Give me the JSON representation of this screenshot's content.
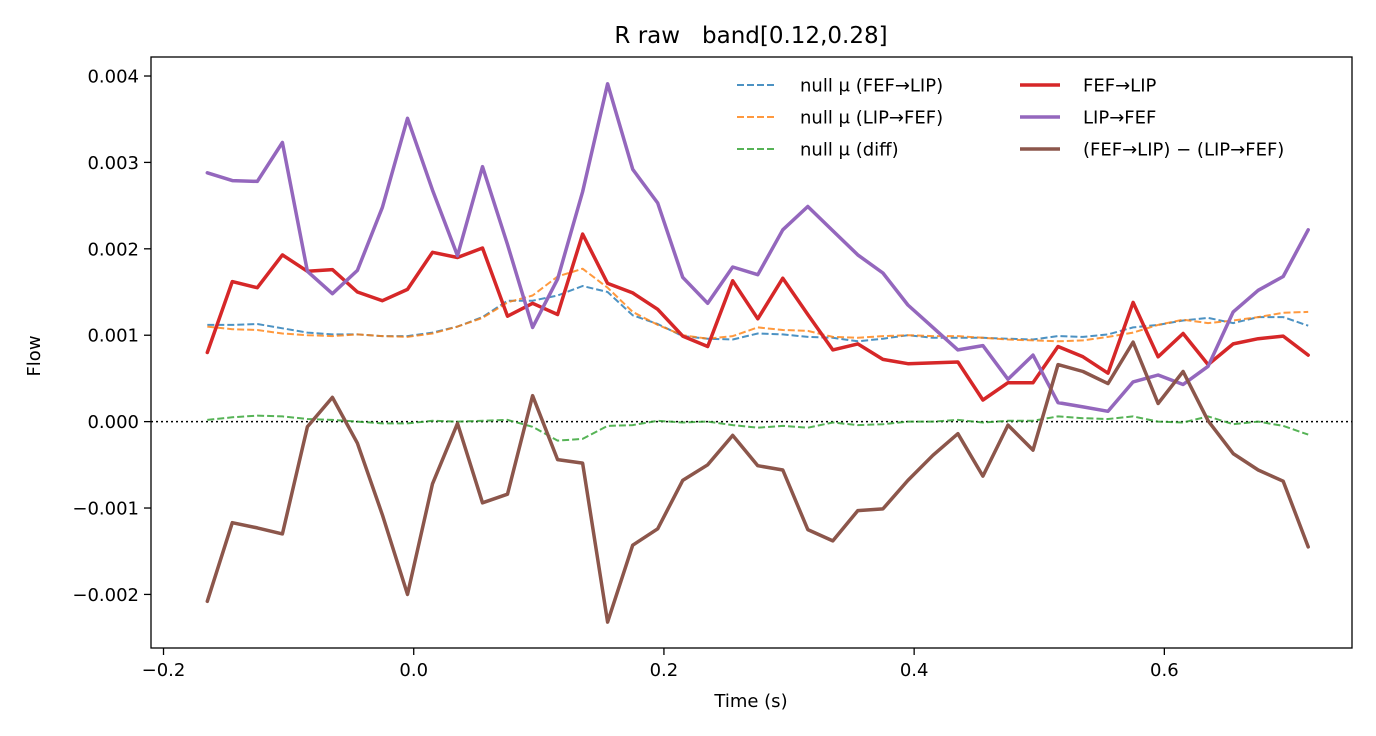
{
  "chart_data": {
    "type": "line",
    "title": "R raw   band[0.12,0.28]",
    "xlabel": "Time (s)",
    "ylabel": "Flow",
    "xlim": [
      -0.21,
      0.75
    ],
    "ylim": [
      -0.00262,
      0.00422
    ],
    "xticks": [
      -0.2,
      0.0,
      0.2,
      0.4,
      0.6
    ],
    "xtick_labels": [
      "−0.2",
      "0.0",
      "0.2",
      "0.4",
      "0.6"
    ],
    "yticks": [
      -0.002,
      -0.001,
      0.0,
      0.001,
      0.002,
      0.003,
      0.004
    ],
    "ytick_labels": [
      "−0.002",
      "−0.001",
      "0.000",
      "0.001",
      "0.002",
      "0.003",
      "0.004"
    ],
    "zero_line": true,
    "grid": false,
    "legend_position": "upper right",
    "x": [
      -0.165,
      -0.145,
      -0.125,
      -0.105,
      -0.085,
      -0.065,
      -0.045,
      -0.025,
      -0.005,
      0.015,
      0.035,
      0.055,
      0.075,
      0.095,
      0.115,
      0.135,
      0.155,
      0.175,
      0.195,
      0.215,
      0.235,
      0.255,
      0.275,
      0.295,
      0.315,
      0.335,
      0.355,
      0.375,
      0.395,
      0.415,
      0.435,
      0.455,
      0.475,
      0.495,
      0.515,
      0.535,
      0.555,
      0.575,
      0.595,
      0.615,
      0.635,
      0.655,
      0.675,
      0.695,
      0.715
    ],
    "series": [
      {
        "name": "null μ (FEF→LIP)",
        "color": "#1f77b4",
        "style": "dashed",
        "values": [
          0.00112,
          0.00112,
          0.00113,
          0.00108,
          0.00103,
          0.00101,
          0.00101,
          0.00099,
          0.00099,
          0.00103,
          0.0011,
          0.00121,
          0.0014,
          0.0014,
          0.00146,
          0.00157,
          0.0015,
          0.00123,
          0.00113,
          0.00099,
          0.00096,
          0.00095,
          0.00102,
          0.00101,
          0.00098,
          0.00097,
          0.00093,
          0.00096,
          0.001,
          0.00097,
          0.00097,
          0.00097,
          0.00096,
          0.00095,
          0.00099,
          0.00098,
          0.00101,
          0.00109,
          0.00112,
          0.00117,
          0.0012,
          0.00114,
          0.00121,
          0.00121,
          0.00111
        ]
      },
      {
        "name": "null μ (LIP→FEF)",
        "color": "#ff7f0e",
        "style": "dashed",
        "values": [
          0.0011,
          0.00107,
          0.00106,
          0.00102,
          0.001,
          0.00099,
          0.00101,
          0.00099,
          0.00098,
          0.00102,
          0.0011,
          0.0012,
          0.00138,
          0.00146,
          0.00168,
          0.00177,
          0.00155,
          0.00127,
          0.00112,
          0.001,
          0.00096,
          0.00099,
          0.00109,
          0.00106,
          0.00105,
          0.00098,
          0.00097,
          0.00099,
          0.001,
          0.00099,
          0.00099,
          0.00097,
          0.00095,
          0.00094,
          0.00093,
          0.00094,
          0.00098,
          0.00103,
          0.00112,
          0.00118,
          0.00114,
          0.00117,
          0.00121,
          0.00126,
          0.00127
        ]
      },
      {
        "name": "null μ (diff)",
        "color": "#2ca02c",
        "style": "dashed",
        "values": [
          2e-05,
          5e-05,
          7e-05,
          6e-05,
          3e-05,
          2e-05,
          0.0,
          -2e-05,
          -2e-05,
          1e-05,
          0.0,
          1e-05,
          2e-05,
          -6e-05,
          -0.00022,
          -0.0002,
          -5e-05,
          -4e-05,
          1e-05,
          -1e-05,
          0.0,
          -4e-05,
          -7e-05,
          -5e-05,
          -7e-05,
          -1e-05,
          -4e-05,
          -3e-05,
          0.0,
          0.0,
          2e-05,
          -1e-05,
          1e-05,
          1e-05,
          6e-05,
          4e-05,
          3e-05,
          6e-05,
          0.0,
          -1e-05,
          6e-05,
          -3e-05,
          0.0,
          -5e-05,
          -0.00015
        ]
      },
      {
        "name": "FEF→LIP",
        "color": "#d62728",
        "style": "solid",
        "values": [
          0.0008,
          0.00162,
          0.00155,
          0.00193,
          0.00174,
          0.00176,
          0.0015,
          0.0014,
          0.00153,
          0.00196,
          0.0019,
          0.00201,
          0.00122,
          0.00137,
          0.00124,
          0.00217,
          0.0016,
          0.00149,
          0.0013,
          0.00099,
          0.00087,
          0.00163,
          0.00119,
          0.00166,
          0.00124,
          0.00083,
          0.0009,
          0.00072,
          0.00067,
          0.00068,
          0.00069,
          0.00025,
          0.00045,
          0.00045,
          0.00087,
          0.00075,
          0.00056,
          0.00138,
          0.00075,
          0.00102,
          0.00066,
          0.0009,
          0.00096,
          0.00099,
          0.00077
        ]
      },
      {
        "name": "LIP→FEF",
        "color": "#9467bd",
        "style": "solid",
        "values": [
          0.00288,
          0.00279,
          0.00278,
          0.00323,
          0.00174,
          0.00148,
          0.00175,
          0.00248,
          0.00351,
          0.00268,
          0.00192,
          0.00295,
          0.00205,
          0.00109,
          0.00165,
          0.00266,
          0.00391,
          0.00292,
          0.00253,
          0.00167,
          0.00137,
          0.00179,
          0.0017,
          0.00222,
          0.00249,
          0.00221,
          0.00193,
          0.00172,
          0.00135,
          0.00109,
          0.00083,
          0.00088,
          0.00049,
          0.00077,
          0.00022,
          0.00017,
          0.00012,
          0.00046,
          0.00054,
          0.00043,
          0.00064,
          0.00127,
          0.00152,
          0.00168,
          0.00222
        ]
      },
      {
        "name": "(FEF→LIP) − (LIP→FEF)",
        "color": "#8c564b",
        "style": "solid",
        "values": [
          -0.00208,
          -0.00117,
          -0.00123,
          -0.0013,
          -6e-05,
          0.00028,
          -0.00025,
          -0.00108,
          -0.002,
          -0.00072,
          -2e-05,
          -0.00094,
          -0.00084,
          0.0003,
          -0.00044,
          -0.00048,
          -0.00232,
          -0.00143,
          -0.00124,
          -0.00068,
          -0.0005,
          -0.00016,
          -0.00051,
          -0.00056,
          -0.00125,
          -0.00138,
          -0.00103,
          -0.00101,
          -0.00068,
          -0.00039,
          -0.00014,
          -0.00063,
          -4e-05,
          -0.00033,
          0.00066,
          0.00058,
          0.00044,
          0.00092,
          0.00021,
          0.00058,
          1e-05,
          -0.00037,
          -0.00056,
          -0.00069,
          -0.00145
        ]
      }
    ]
  }
}
